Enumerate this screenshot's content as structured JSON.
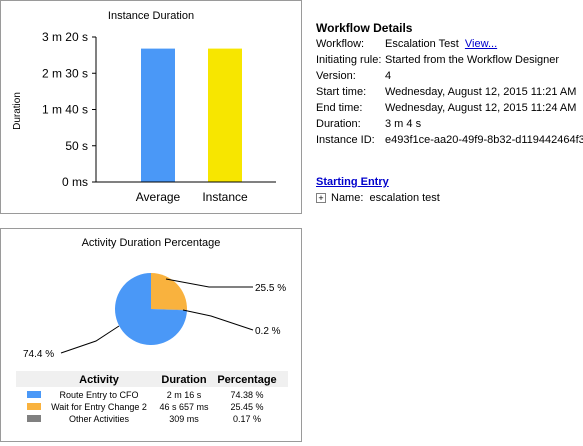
{
  "bar_chart": {
    "title": "Instance Duration",
    "ylabel": "Duration",
    "ticks": [
      "3 m 20 s",
      "2 m 30 s",
      "1 m 40 s",
      "50 s",
      "0 ms"
    ],
    "colors": {
      "Average": "#4a98f7",
      "Instance": "#f7e600"
    }
  },
  "pie_chart": {
    "title": "Activity Duration Percentage",
    "labels": [
      "25.5 %",
      "0.2 %",
      "74.4 %"
    ],
    "colors": [
      "#4a98f7",
      "#f9b23e",
      "#808080"
    ]
  },
  "legend_table": {
    "headers": [
      "Activity",
      "Duration",
      "Percentage"
    ],
    "rows": [
      {
        "activity": "Route Entry to CFO",
        "duration": "2 m 16 s",
        "percentage": "74.38 %",
        "color": "#4a98f7"
      },
      {
        "activity": "Wait for Entry Change 2",
        "duration": "46 s 657 ms",
        "percentage": "25.45 %",
        "color": "#f9b23e"
      },
      {
        "activity": "Other Activities",
        "duration": "309 ms",
        "percentage": "0.17 %",
        "color": "#808080"
      }
    ]
  },
  "chart_data": [
    {
      "type": "bar",
      "title": "Instance Duration",
      "xlabel": "",
      "ylabel": "Duration",
      "categories": [
        "Average",
        "Instance"
      ],
      "values": [
        184,
        184
      ],
      "unit": "seconds",
      "ylim": [
        0,
        200
      ],
      "ytick_labels": [
        "0 ms",
        "50 s",
        "1 m 40 s",
        "2 m 30 s",
        "3 m 20 s"
      ],
      "grid": false
    },
    {
      "type": "pie",
      "title": "Activity Duration Percentage",
      "categories": [
        "Route Entry to CFO",
        "Wait for Entry Change 2",
        "Other Activities"
      ],
      "values": [
        74.38,
        25.45,
        0.17
      ],
      "data_labels": [
        "74.4 %",
        "25.5 %",
        "0.2 %"
      ]
    }
  ],
  "details": {
    "title": "Workflow Details",
    "workflow_label": "Workflow:",
    "workflow_value": "Escalation Test",
    "view_link": "View...",
    "initiating_rule_label": "Initiating rule:",
    "initiating_rule_value": "Started from the Workflow Designer",
    "version_label": "Version:",
    "version_value": "4",
    "start_time_label": "Start time:",
    "start_time_value": "Wednesday, August 12, 2015 11:21 AM",
    "end_time_label": "End time:",
    "end_time_value": "Wednesday, August 12, 2015 11:24 AM",
    "duration_label": "Duration:",
    "duration_value": "3 m 4 s",
    "instance_id_label": "Instance ID:",
    "instance_id_value": "e493f1ce-aa20-49f9-8b32-d119442464f3"
  },
  "starting_entry": {
    "title": "Starting Entry",
    "expand_glyph": "+",
    "name_label": "Name:",
    "name_value": "escalation test"
  }
}
